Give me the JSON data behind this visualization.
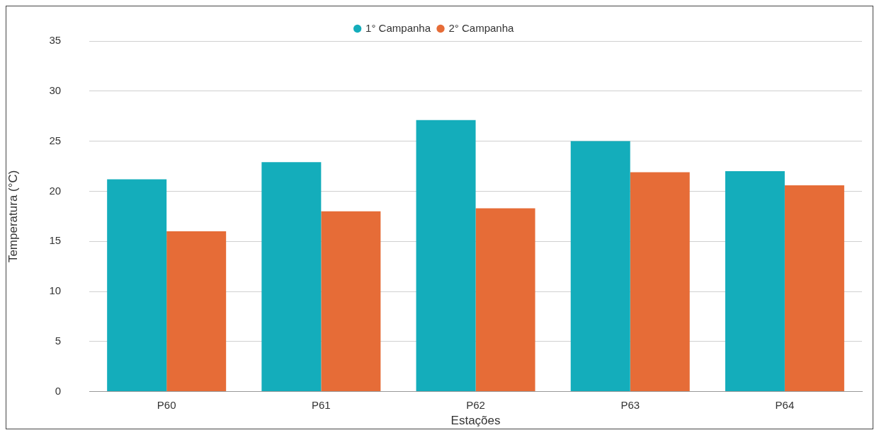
{
  "chart_data": {
    "type": "bar",
    "xlabel": "Estações",
    "ylabel": "Temperatura (°C)",
    "categories": [
      "P60",
      "P61",
      "P62",
      "P63",
      "P64"
    ],
    "series": [
      {
        "name": "1° Campanha",
        "color": "#14adbb",
        "values": [
          21.2,
          22.9,
          27.1,
          25.0,
          22.0
        ]
      },
      {
        "name": "2° Campanha",
        "color": "#e66c37",
        "values": [
          16.0,
          18.0,
          18.3,
          21.9,
          20.6
        ]
      }
    ],
    "ylim": [
      0,
      35
    ],
    "yticks": [
      0,
      5,
      10,
      15,
      20,
      25,
      30,
      35
    ],
    "grid": "y",
    "legend": "top"
  }
}
